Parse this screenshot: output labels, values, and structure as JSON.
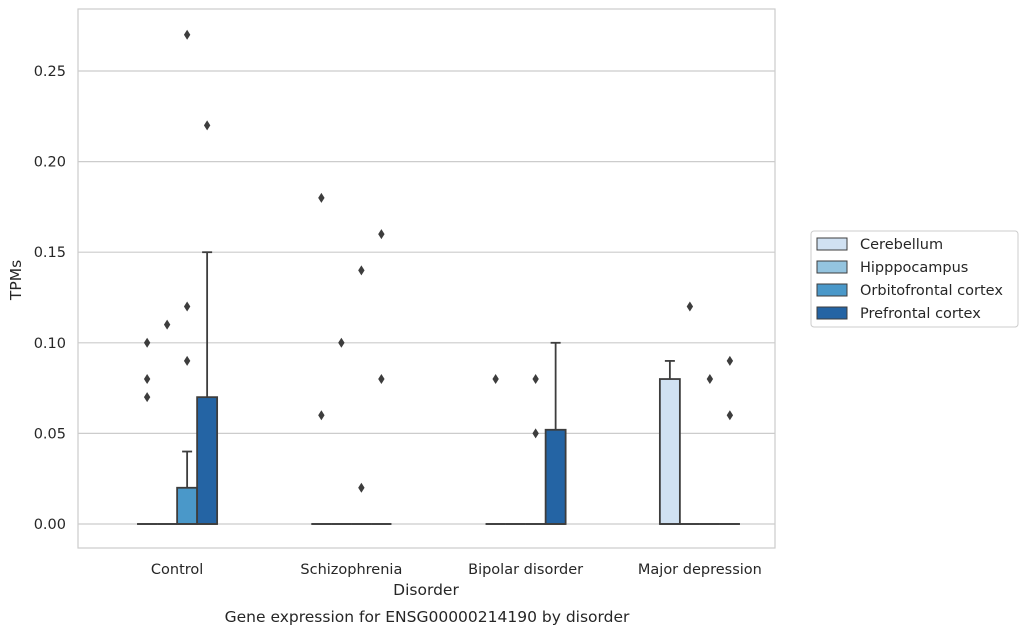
{
  "chart_data": {
    "type": "box",
    "title": "",
    "caption": "Gene expression for ENSG00000214190 by disorder",
    "xlabel": "Disorder",
    "ylabel": "TPMs",
    "categories": [
      "Control",
      "Schizophrenia",
      "Bipolar disorder",
      "Major depression"
    ],
    "ylim": [
      -0.013,
      0.284
    ],
    "yticks": [
      "0.00",
      "0.05",
      "0.10",
      "0.15",
      "0.20",
      "0.25"
    ],
    "ytick_values": [
      0.0,
      0.05,
      0.1,
      0.15,
      0.2,
      0.25
    ],
    "grid": true,
    "legend_position": "right",
    "series": [
      {
        "name": "Cerebellum",
        "color": "#d0e1f2",
        "boxes": [
          {
            "q1": 0,
            "median": 0,
            "q3": 0,
            "whisker_low": 0,
            "whisker_high": 0,
            "outliers": [
              0.1,
              0.08,
              0.07
            ]
          },
          {
            "q1": 0,
            "median": 0,
            "q3": 0,
            "whisker_low": 0,
            "whisker_high": 0,
            "outliers": [
              0.18,
              0.06
            ]
          },
          {
            "q1": 0,
            "median": 0,
            "q3": 0,
            "whisker_low": 0,
            "whisker_high": 0,
            "outliers": [
              0.08
            ]
          },
          {
            "q1": 0,
            "median": 0,
            "q3": 0.08,
            "whisker_low": 0,
            "whisker_high": 0.09,
            "outliers": []
          }
        ]
      },
      {
        "name": "Hipppocampus",
        "color": "#94c4df",
        "boxes": [
          {
            "q1": 0,
            "median": 0,
            "q3": 0,
            "whisker_low": 0,
            "whisker_high": 0,
            "outliers": [
              0.11
            ]
          },
          {
            "q1": 0,
            "median": 0,
            "q3": 0,
            "whisker_low": 0,
            "whisker_high": 0,
            "outliers": [
              0.1
            ]
          },
          {
            "q1": 0,
            "median": 0,
            "q3": 0,
            "whisker_low": 0,
            "whisker_high": 0,
            "outliers": []
          },
          {
            "q1": 0,
            "median": 0,
            "q3": 0,
            "whisker_low": 0,
            "whisker_high": 0,
            "outliers": [
              0.12
            ]
          }
        ]
      },
      {
        "name": "Orbitofrontal cortex",
        "color": "#4a98c9",
        "boxes": [
          {
            "q1": 0,
            "median": 0,
            "q3": 0.02,
            "whisker_low": 0,
            "whisker_high": 0.04,
            "outliers": [
              0.27,
              0.12,
              0.09
            ]
          },
          {
            "q1": 0,
            "median": 0,
            "q3": 0,
            "whisker_low": 0,
            "whisker_high": 0,
            "outliers": [
              0.14,
              0.02
            ]
          },
          {
            "q1": 0,
            "median": 0,
            "q3": 0,
            "whisker_low": 0,
            "whisker_high": 0,
            "outliers": [
              0.08,
              0.05
            ]
          },
          {
            "q1": 0,
            "median": 0,
            "q3": 0,
            "whisker_low": 0,
            "whisker_high": 0,
            "outliers": [
              0.08
            ]
          }
        ]
      },
      {
        "name": "Prefrontal cortex",
        "color": "#2464a4",
        "boxes": [
          {
            "q1": 0,
            "median": 0,
            "q3": 0.07,
            "whisker_low": 0,
            "whisker_high": 0.15,
            "outliers": [
              0.22
            ]
          },
          {
            "q1": 0,
            "median": 0,
            "q3": 0,
            "whisker_low": 0,
            "whisker_high": 0,
            "outliers": [
              0.16,
              0.08
            ]
          },
          {
            "q1": 0,
            "median": 0,
            "q3": 0.052,
            "whisker_low": 0,
            "whisker_high": 0.1,
            "outliers": []
          },
          {
            "q1": 0,
            "median": 0,
            "q3": 0,
            "whisker_low": 0,
            "whisker_high": 0,
            "outliers": [
              0.09,
              0.06
            ]
          }
        ]
      }
    ]
  }
}
